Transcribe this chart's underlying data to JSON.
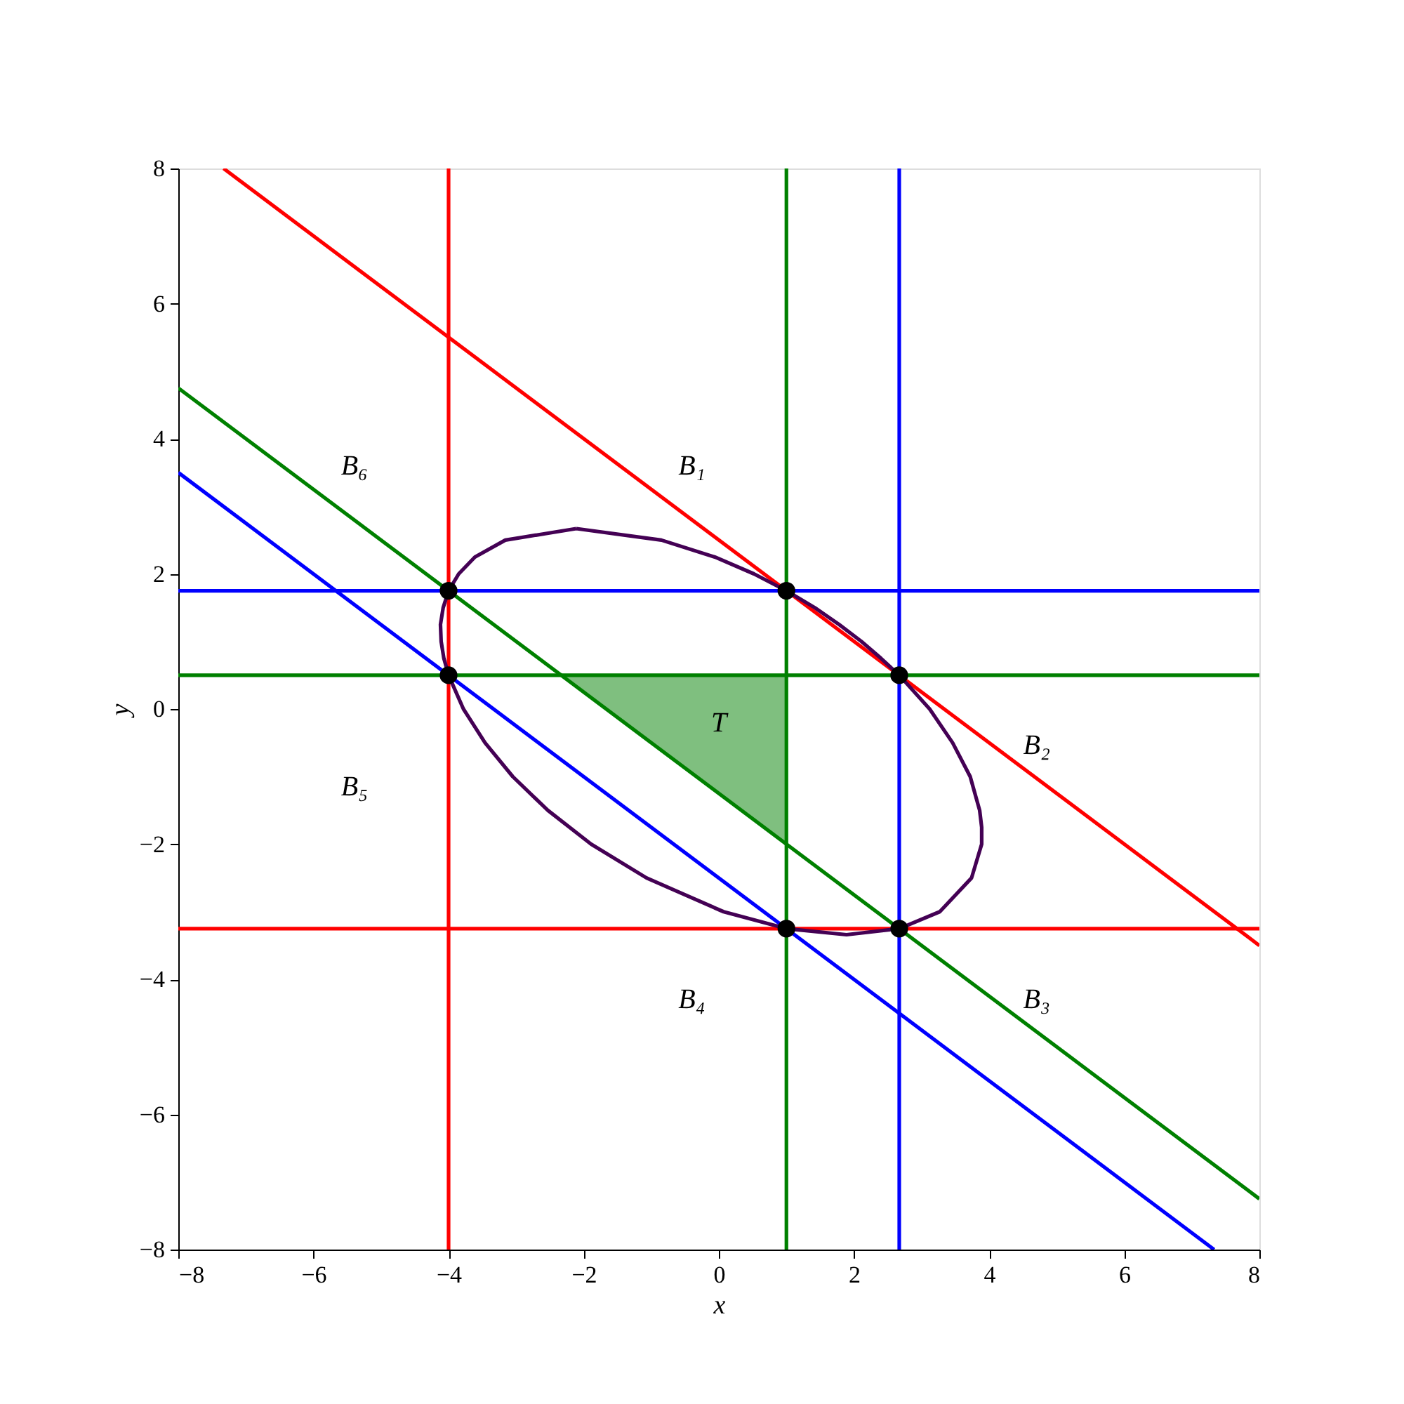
{
  "chart_data": {
    "type": "line",
    "xlabel": "x",
    "ylabel": "y",
    "xlim": [
      -8,
      8
    ],
    "ylim": [
      -8,
      8
    ],
    "xticks": [
      -8,
      -6,
      -4,
      -2,
      0,
      2,
      4,
      6,
      8
    ],
    "yticks": [
      -8,
      -6,
      -4,
      -2,
      0,
      2,
      4,
      6,
      8
    ],
    "grid": false,
    "line_style": "solid",
    "series": [
      {
        "color": "#ff0000",
        "x": [
          -7.33,
          8
        ],
        "values": [
          8,
          -3.5
        ]
      },
      {
        "color": "#008000",
        "x": [
          -8,
          8
        ],
        "values": [
          4.75,
          -7.25
        ]
      },
      {
        "color": "#0000ff",
        "x": [
          -8,
          7.33
        ],
        "values": [
          3.5,
          -8
        ]
      },
      {
        "type": "scatter",
        "color": "#000000",
        "marker": "circle",
        "x": [
          -4,
          1,
          2.67,
          -4,
          1,
          2.67
        ],
        "values": [
          1.75,
          1.75,
          0.5,
          0.5,
          -3.25,
          -3.25
        ]
      }
    ],
    "ref_lines": [
      {
        "axis": "x",
        "value": -4,
        "color": "#ff0000"
      },
      {
        "axis": "x",
        "value": 1,
        "color": "#008000"
      },
      {
        "axis": "x",
        "value": 2.67,
        "color": "#0000ff"
      },
      {
        "axis": "y",
        "value": 1.75,
        "color": "#0000ff"
      },
      {
        "axis": "y",
        "value": 0.5,
        "color": "#008000"
      },
      {
        "axis": "y",
        "value": -3.25,
        "color": "#ff0000"
      }
    ],
    "annotations": [
      "B₁",
      "B₂",
      "B₃",
      "B₄",
      "B₅",
      "B₆",
      "T"
    ]
  }
}
